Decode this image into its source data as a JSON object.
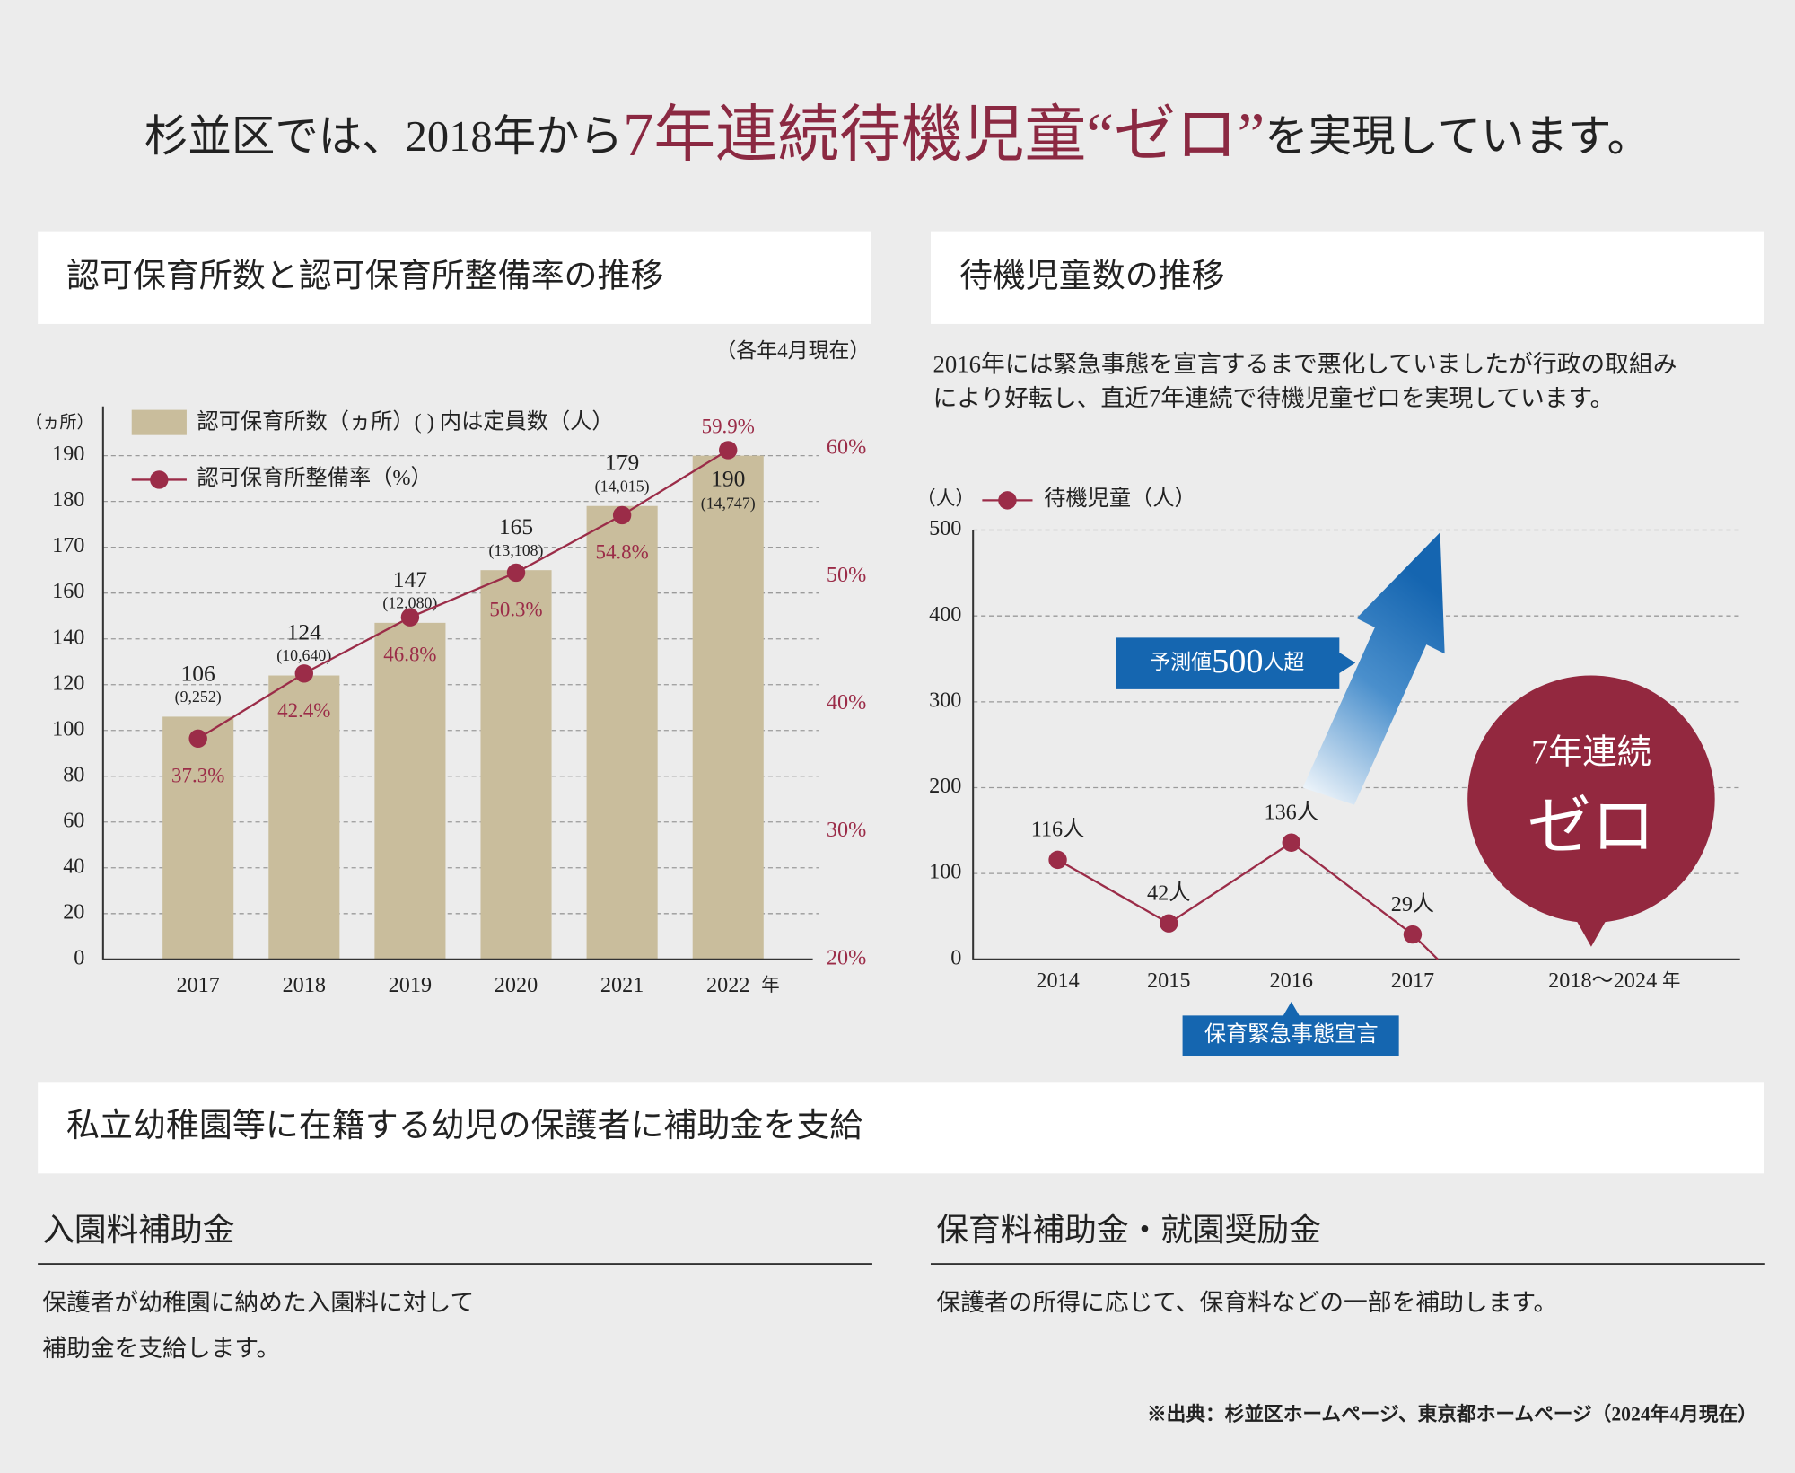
{
  "header": {
    "title_pre": "杉並区では、2018年から",
    "title_emphasis": "7年連続待機児童“ゼロ”",
    "title_post": "を実現しています。"
  },
  "chart_data": [
    {
      "type": "bar",
      "title": "認可保育所数と認可保育所整備率の推移",
      "note": "（各年4月現在）",
      "y_unit": "（ヵ所）",
      "x_unit": "年",
      "categories": [
        "2017",
        "2018",
        "2019",
        "2020",
        "2021",
        "2022"
      ],
      "series": [
        {
          "name": "認可保育所数（ヵ所）( ) 内は定員数（人）",
          "color": "#c9bd9c",
          "values": [
            106,
            124,
            147,
            165,
            179,
            190
          ],
          "capacity": {
            "values": [
              9252,
              10640,
              12080,
              13108,
              14015,
              14747
            ],
            "value_labels": [
              "(9,252)",
              "(10,640)",
              "(12,080)",
              "(13,108)",
              "(14,015)",
              "(14,747)"
            ]
          }
        },
        {
          "name": "認可保育所整備率（%）",
          "type": "line",
          "axis": "y2",
          "color": "#9b2c48",
          "values": [
            37.3,
            42.4,
            46.8,
            50.3,
            54.8,
            59.9
          ],
          "value_labels": [
            "37.3%",
            "42.4%",
            "46.8%",
            "50.3%",
            "54.8%",
            "59.9%"
          ]
        }
      ],
      "ylim": [
        0,
        190
      ],
      "yticks": [
        0,
        20,
        40,
        60,
        80,
        100,
        120,
        140,
        160,
        170,
        180,
        190
      ],
      "y2lim": [
        20,
        60
      ],
      "y2ticks": [
        {
          "value": 20,
          "label": "20%"
        },
        {
          "value": 30,
          "label": "30%"
        },
        {
          "value": 40,
          "label": "40%"
        },
        {
          "value": 50,
          "label": "50%"
        },
        {
          "value": 60,
          "label": "60%"
        }
      ],
      "grid": true
    },
    {
      "type": "line",
      "title": "待機児童数の推移",
      "description": [
        "2016年には緊急事態を宣言するまで悪化していましたが行政の取組み",
        "により好転し、直近7年連続で待機児童ゼロを実現しています。"
      ],
      "y_unit": "（人）",
      "x_unit": "年",
      "categories": [
        "2014",
        "2015",
        "2016",
        "2017",
        "2018〜2024"
      ],
      "series": [
        {
          "name": "待機児童（人）",
          "color": "#9b2c48",
          "values": [
            116,
            42,
            136,
            29,
            null
          ],
          "value_labels": [
            "116人",
            "42人",
            "136人",
            "29人",
            null
          ]
        }
      ],
      "ylim": [
        0,
        500
      ],
      "yticks": [
        0,
        100,
        200,
        300,
        400,
        500
      ],
      "grid": true,
      "annotations": {
        "forecast": [
          "予測値",
          "500",
          "人超"
        ],
        "emergency": "保育緊急事態宣言",
        "badge": [
          "7年連続",
          "ゼロ"
        ]
      }
    }
  ],
  "subsidy": {
    "title": "私立幼稚園等に在籍する幼児の保護者に補助金を支給",
    "items": [
      {
        "heading": "入園料補助金",
        "body": [
          "保護者が幼稚園に納めた入園料に対して",
          "補助金を支給します。"
        ]
      },
      {
        "heading": "保育料補助金・就園奨励金",
        "body": [
          "保護者の所得に応じて、保育料などの一部を補助します。"
        ]
      }
    ]
  },
  "source": "※出典：杉並区ホームページ、東京都ホームページ（2024年4月現在）"
}
